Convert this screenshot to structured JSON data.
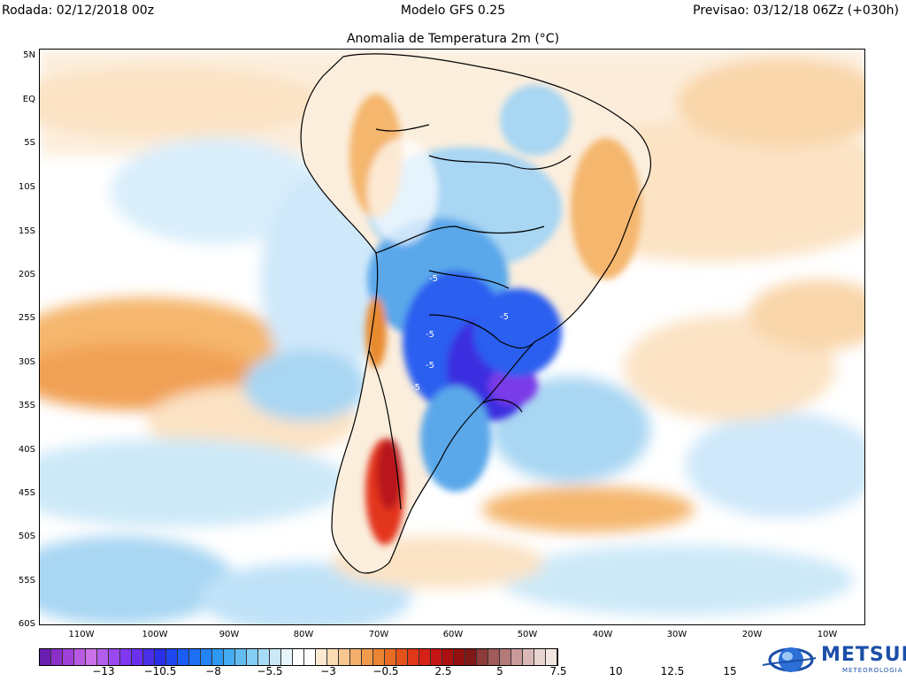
{
  "header": {
    "run_label": "Rodada: 02/12/2018 00z",
    "model_label": "Modelo GFS 0.25",
    "forecast_label": "Previsao: 03/12/18 06Zz (+030h)"
  },
  "map": {
    "title": "Anomalia de Temperatura 2m (°C)",
    "lat_labels": [
      "5N",
      "EQ",
      "5S",
      "10S",
      "15S",
      "20S",
      "25S",
      "30S",
      "35S",
      "40S",
      "45S",
      "50S",
      "55S",
      "60S"
    ],
    "lon_labels": [
      "110W",
      "100W",
      "90W",
      "80W",
      "70W",
      "60W",
      "50W",
      "40W",
      "30W",
      "20W",
      "10W"
    ],
    "contour_labels": [
      "-5",
      "-5",
      "-5",
      "-5",
      "-5"
    ],
    "colors": {
      "ocean_base": "#ffffff",
      "warm_light": "#fbe3c4",
      "warm_mid": "#f5b66d",
      "warm_strong": "#e88a2e",
      "hot": "#e3361c",
      "very_hot": "#b8141a",
      "cool_light": "#d9eefb",
      "cool_mid": "#a8d6f3",
      "cool_strong": "#5aa8ea",
      "cold": "#2a5ff0",
      "very_cold": "#3a2fe0",
      "extreme_cold": "#7a3ae8"
    }
  },
  "colorbar": {
    "colors": [
      "#6a1fb0",
      "#8a2fc8",
      "#a040d8",
      "#b85ae4",
      "#cc70ea",
      "#b45cec",
      "#9a48f2",
      "#8038f2",
      "#6a30ee",
      "#4a2fe8",
      "#2a2ee6",
      "#1e46f0",
      "#1a5cf4",
      "#1c70f6",
      "#2284f6",
      "#2e98f4",
      "#44acf2",
      "#62bcf2",
      "#84cef4",
      "#a8dcf6",
      "#cae8f8",
      "#e6f4fb",
      "#ffffff",
      "#ffffff",
      "#fbe9d2",
      "#f9dbb4",
      "#f6c690",
      "#f3b06c",
      "#f09a4c",
      "#ec8434",
      "#e86c24",
      "#e4521c",
      "#e03818",
      "#d62216",
      "#c41414",
      "#ac1010",
      "#941010",
      "#801818",
      "#8c3a3a",
      "#a05a5a",
      "#b47a7a",
      "#c89a9a",
      "#dab8b8",
      "#e8d4d0",
      "#f2e6e0"
    ],
    "labels": [
      "−13",
      "−10.5",
      "−8",
      "−5.5",
      "−3",
      "−0.5",
      "2.5",
      "5",
      "7.5",
      "10",
      "12.5",
      "15"
    ]
  },
  "logo": {
    "name": "METSUL",
    "tagline": "METEOROLOGIA"
  }
}
